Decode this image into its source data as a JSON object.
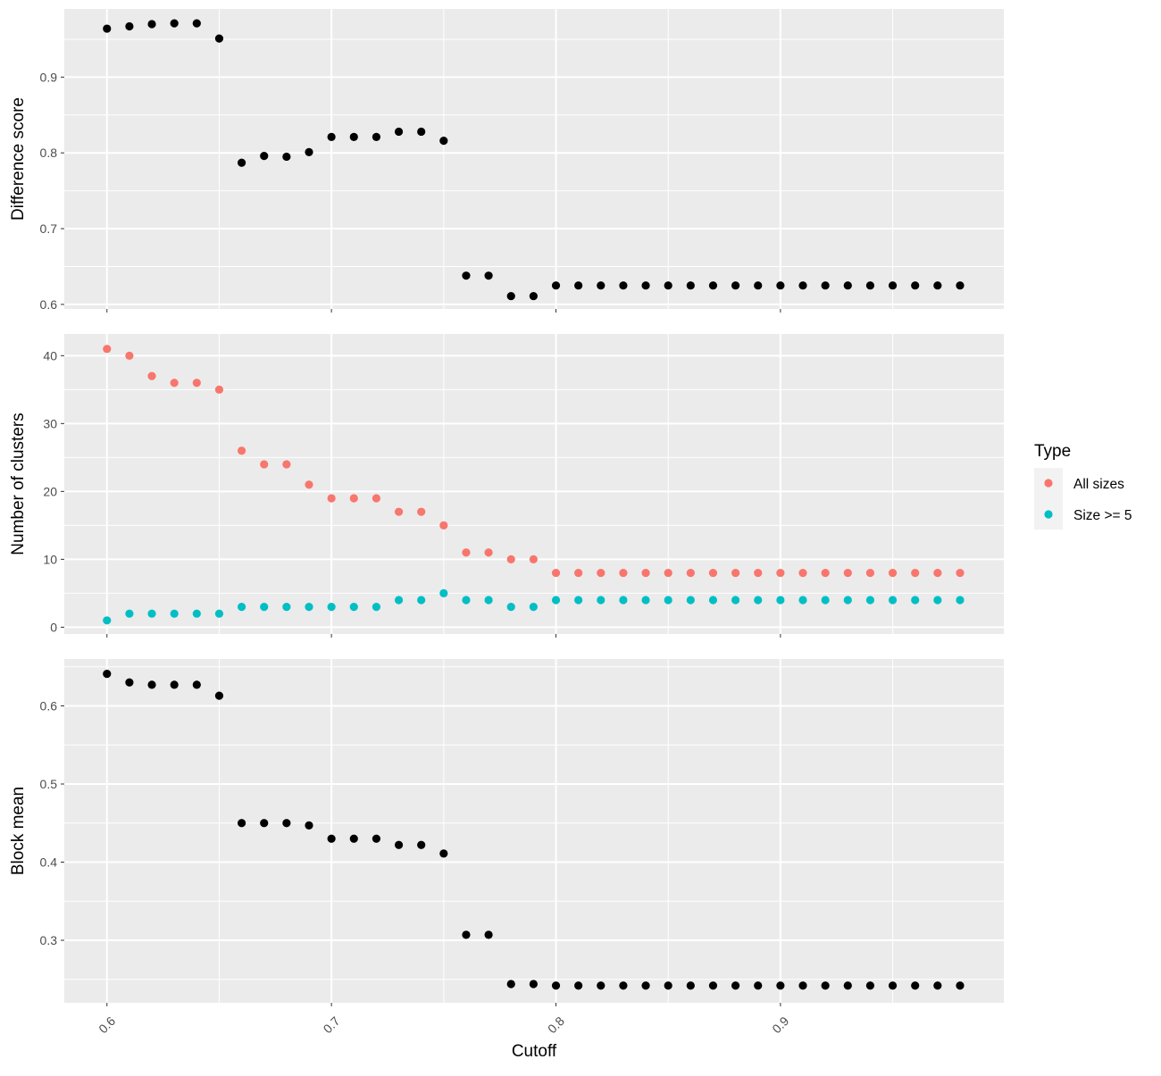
{
  "chart_data": {
    "type": "scatter",
    "xlabel": "Cutoff",
    "x_ticks": [
      "0.6",
      "0.7",
      "0.8",
      "0.9"
    ],
    "x_tick_values": [
      0.6,
      0.7,
      0.8,
      0.9
    ],
    "xlim": [
      0.581,
      0.9995
    ],
    "background": "#EBEBEB",
    "grid": true,
    "legend": {
      "title": "Type",
      "position": "right",
      "entries": [
        {
          "label": "All sizes",
          "color": "#F8766D"
        },
        {
          "label": "Size >= 5",
          "color": "#00BFC4"
        }
      ]
    },
    "x": [
      0.6,
      0.61,
      0.62,
      0.63,
      0.64,
      0.65,
      0.66,
      0.67,
      0.68,
      0.69,
      0.7,
      0.71,
      0.72,
      0.73,
      0.74,
      0.75,
      0.76,
      0.77,
      0.78,
      0.79,
      0.8,
      0.81,
      0.82,
      0.83,
      0.84,
      0.85,
      0.86,
      0.87,
      0.88,
      0.89,
      0.9,
      0.91,
      0.92,
      0.93,
      0.94,
      0.95,
      0.96,
      0.97,
      0.98
    ],
    "panels": [
      {
        "ylabel": "Difference score",
        "y_ticks": [
          "0.6",
          "0.7",
          "0.8",
          "0.9"
        ],
        "y_tick_values": [
          0.6,
          0.7,
          0.8,
          0.9
        ],
        "ylim": [
          0.594,
          0.99
        ],
        "series": [
          {
            "color": "#000000",
            "values": [
              0.964,
              0.967,
              0.97,
              0.971,
              0.971,
              0.951,
              0.787,
              0.796,
              0.795,
              0.801,
              0.821,
              0.821,
              0.821,
              0.828,
              0.828,
              0.816,
              0.638,
              0.638,
              0.611,
              0.611,
              0.625,
              0.625,
              0.625,
              0.625,
              0.625,
              0.625,
              0.625,
              0.625,
              0.625,
              0.625,
              0.625,
              0.625,
              0.625,
              0.625,
              0.625,
              0.625,
              0.625,
              0.625,
              0.625
            ]
          }
        ]
      },
      {
        "ylabel": "Number of clusters",
        "y_ticks": [
          "0",
          "10",
          "20",
          "30",
          "40"
        ],
        "y_tick_values": [
          0,
          10,
          20,
          30,
          40
        ],
        "ylim": [
          -1,
          43.2
        ],
        "series": [
          {
            "name": "All sizes",
            "color": "#F8766D",
            "values": [
              41,
              40,
              37,
              36,
              36,
              35,
              26,
              24,
              24,
              21,
              19,
              19,
              19,
              17,
              17,
              15,
              11,
              11,
              10,
              10,
              8,
              8,
              8,
              8,
              8,
              8,
              8,
              8,
              8,
              8,
              8,
              8,
              8,
              8,
              8,
              8,
              8,
              8,
              8
            ]
          },
          {
            "name": "Size >= 5",
            "color": "#00BFC4",
            "values": [
              1,
              2,
              2,
              2,
              2,
              2,
              3,
              3,
              3,
              3,
              3,
              3,
              3,
              4,
              4,
              5,
              4,
              4,
              3,
              3,
              4,
              4,
              4,
              4,
              4,
              4,
              4,
              4,
              4,
              4,
              4,
              4,
              4,
              4,
              4,
              4,
              4,
              4,
              4
            ]
          }
        ]
      },
      {
        "ylabel": "Block mean",
        "y_ticks": [
          "0.3",
          "0.4",
          "0.5",
          "0.6"
        ],
        "y_tick_values": [
          0.3,
          0.4,
          0.5,
          0.6
        ],
        "ylim": [
          0.22,
          0.66
        ],
        "series": [
          {
            "color": "#000000",
            "values": [
              0.641,
              0.63,
              0.627,
              0.627,
              0.627,
              0.613,
              0.45,
              0.45,
              0.45,
              0.447,
              0.43,
              0.43,
              0.43,
              0.422,
              0.422,
              0.411,
              0.307,
              0.307,
              0.244,
              0.244,
              0.242,
              0.242,
              0.242,
              0.242,
              0.242,
              0.242,
              0.242,
              0.242,
              0.242,
              0.242,
              0.242,
              0.242,
              0.242,
              0.242,
              0.242,
              0.242,
              0.242,
              0.242,
              0.242
            ]
          }
        ]
      }
    ]
  }
}
